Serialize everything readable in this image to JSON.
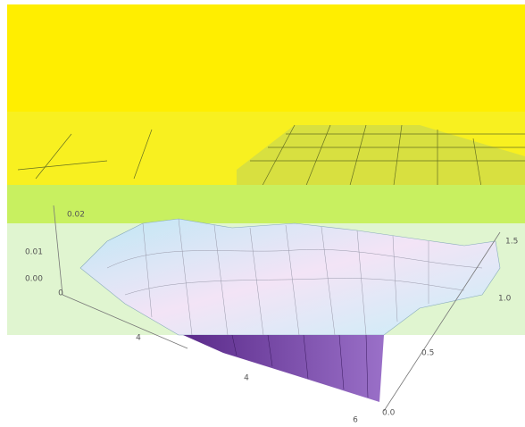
{
  "plot": {
    "z_ticks": [
      "0.02",
      "0.01",
      "0.00"
    ],
    "x_ticks": [
      "0",
      "4",
      "4",
      "6"
    ],
    "y_ticks": [
      "1.5",
      "1.0",
      "0.5",
      "0.0"
    ]
  }
}
